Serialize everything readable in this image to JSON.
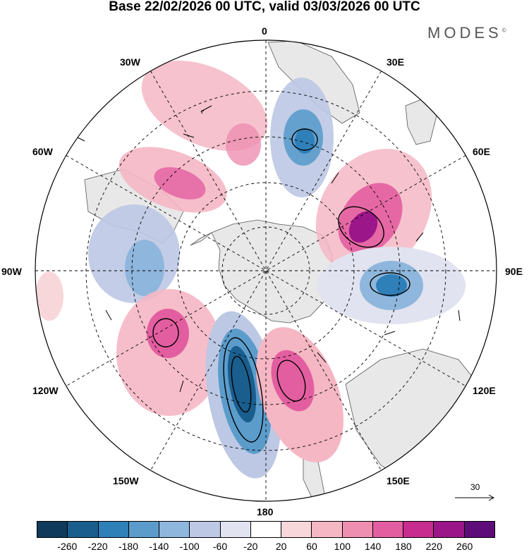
{
  "title": "Base 22/02/2026 00 UTC, valid 03/03/2026 00 UTC",
  "brand": "MODES",
  "brand_mark": "©",
  "longitude_labels": {
    "n0": "0",
    "e30": "30E",
    "e60": "60E",
    "e90": "90E",
    "e120": "120E",
    "e150": "150E",
    "s180": "180",
    "w150": "150W",
    "w120": "120W",
    "w90": "90W",
    "w60": "60W",
    "w30": "30W"
  },
  "reference_vector": {
    "label": "30"
  },
  "colorbar": {
    "colors": [
      "#0f3a5c",
      "#1a5e8e",
      "#2f7fb8",
      "#5b9ccb",
      "#8fb6dc",
      "#bcc8e4",
      "#e2e3f0",
      "#ffffff",
      "#f8d7da",
      "#f5b7c4",
      "#ee8fb1",
      "#e35ea0",
      "#c82c8f",
      "#9b1688",
      "#5e0c79"
    ],
    "ticks": [
      "-260",
      "-220",
      "-180",
      "-140",
      "-100",
      "-60",
      "-20",
      "20",
      "60",
      "100",
      "140",
      "180",
      "220",
      "260"
    ]
  },
  "anomalies": [
    {
      "name": "high-atlantic-north",
      "type": "positive",
      "value": "60"
    },
    {
      "name": "low-north-0e",
      "type": "negative",
      "value": "-140"
    },
    {
      "name": "high-south-atlantic",
      "type": "positive",
      "value": "140"
    },
    {
      "name": "high-indian-ocean",
      "type": "positive",
      "value": "220"
    },
    {
      "name": "low-southeast-pacific",
      "type": "negative",
      "value": "-100"
    },
    {
      "name": "low-90e",
      "type": "negative",
      "value": "-180"
    },
    {
      "name": "high-pacific-west",
      "type": "positive",
      "value": "140"
    },
    {
      "name": "low-ross-sea",
      "type": "negative",
      "value": "-260"
    },
    {
      "name": "high-tasman",
      "type": "positive",
      "value": "180"
    }
  ]
}
